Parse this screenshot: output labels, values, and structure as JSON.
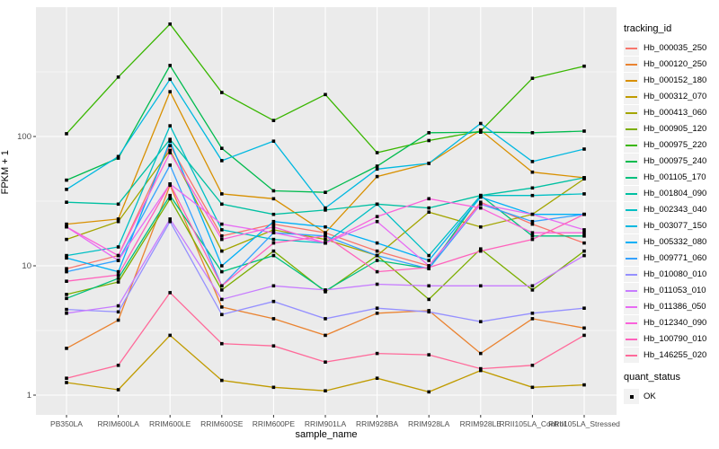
{
  "chart_data": {
    "type": "line",
    "xlabel": "sample_name",
    "ylabel": "FPKM + 1",
    "y_scale": "log10",
    "y_ticks": [
      1,
      10,
      100
    ],
    "ylim": [
      0.7,
      1000
    ],
    "grid": true,
    "legend_position": "right",
    "legend_title": "tracking_id",
    "marker_legend": {
      "title": "quant_status",
      "ok_label": "OK",
      "marker_color": "#000000"
    },
    "panel_bg": "#EBEBEB",
    "grid_color": "#FFFFFF",
    "tick_label_color": "#4D4D4D",
    "categories": [
      "PB350LA",
      "RRIM600LA",
      "RRIM600LE",
      "RRIM600SE",
      "RRIM600PE",
      "RRIM901LA",
      "RRIM928BA",
      "RRIM928LA",
      "RRIM928LE",
      "RRII105LA_Control",
      "RRII105LA_Stressed"
    ],
    "series": [
      {
        "name": "Hb_000035_250",
        "color": "#F8766D",
        "values": [
          9.5,
          12,
          85,
          17,
          21,
          18,
          13,
          10,
          31,
          21,
          15
        ]
      },
      {
        "name": "Hb_000120_250",
        "color": "#EA8331",
        "values": [
          2.3,
          3.8,
          42,
          4.8,
          3.9,
          2.9,
          4.3,
          4.5,
          2.1,
          3.9,
          3.3
        ]
      },
      {
        "name": "Hb_000152_180",
        "color": "#D89000",
        "values": [
          21,
          23,
          222,
          36,
          33,
          18,
          49,
          62,
          112,
          53,
          48
        ]
      },
      {
        "name": "Hb_000312_070",
        "color": "#C09B00",
        "values": [
          1.25,
          1.1,
          2.9,
          1.3,
          1.15,
          1.08,
          1.35,
          1.06,
          1.55,
          1.15,
          1.2
        ]
      },
      {
        "name": "Hb_000413_060",
        "color": "#A3A500",
        "values": [
          16,
          22,
          78,
          13,
          19,
          16,
          12,
          26,
          20,
          25,
          47
        ]
      },
      {
        "name": "Hb_000905_120",
        "color": "#7CAE00",
        "values": [
          6,
          7.5,
          33,
          6.5,
          13,
          6.3,
          12,
          5.5,
          13.5,
          6.5,
          13
        ]
      },
      {
        "name": "Hb_000975_220",
        "color": "#39B600",
        "values": [
          105,
          288,
          740,
          219,
          133,
          211,
          75,
          93,
          110,
          282,
          350
        ]
      },
      {
        "name": "Hb_000975_240",
        "color": "#00BB4E",
        "values": [
          46,
          68,
          354,
          81,
          38,
          37,
          59,
          107,
          108,
          107,
          110
        ]
      },
      {
        "name": "Hb_001105_170",
        "color": "#00C07D",
        "values": [
          5.6,
          8,
          35,
          9,
          12,
          6.4,
          11,
          9.5,
          35,
          17,
          17
        ]
      },
      {
        "name": "Hb_001804_090",
        "color": "#00C0A2",
        "values": [
          31,
          30,
          95,
          30,
          25,
          27,
          30,
          28,
          35,
          40,
          48
        ]
      },
      {
        "name": "Hb_002343_040",
        "color": "#00BFC4",
        "values": [
          12,
          14,
          121,
          19,
          16,
          15,
          30,
          12,
          35,
          35,
          36
        ]
      },
      {
        "name": "Hb_003077_150",
        "color": "#00B8E0",
        "values": [
          39,
          70,
          277,
          65,
          92,
          28,
          56,
          62,
          126,
          64,
          80
        ]
      },
      {
        "name": "Hb_005332_080",
        "color": "#00B0F6",
        "values": [
          11.5,
          9,
          92,
          10,
          22,
          20,
          15,
          11,
          34,
          25,
          25
        ]
      },
      {
        "name": "Hb_009771_060",
        "color": "#35A2FF",
        "values": [
          9,
          11,
          60,
          7,
          18,
          17,
          12,
          9.5,
          30,
          22,
          25
        ]
      },
      {
        "name": "Hb_010080_010",
        "color": "#9590FF",
        "values": [
          4.6,
          4.4,
          22,
          4.2,
          5.3,
          3.9,
          4.7,
          4.4,
          3.7,
          4.3,
          4.7
        ]
      },
      {
        "name": "Hb_011053_010",
        "color": "#C77CFF",
        "values": [
          4.3,
          4.9,
          23,
          5.5,
          7,
          6.5,
          7.2,
          7,
          7,
          7,
          12
        ]
      },
      {
        "name": "Hb_011386_050",
        "color": "#E76BF3",
        "values": [
          20,
          11,
          43,
          21,
          18,
          15,
          22,
          10,
          30,
          25,
          19
        ]
      },
      {
        "name": "Hb_012340_090",
        "color": "#FA62DB",
        "values": [
          20,
          12,
          75,
          16,
          20,
          15,
          24,
          33,
          28,
          18,
          18
        ]
      },
      {
        "name": "Hb_100790_010",
        "color": "#FF62BC",
        "values": [
          7.6,
          8.5,
          43,
          7,
          15,
          17,
          9,
          9.7,
          13,
          16,
          25
        ]
      },
      {
        "name": "Hb_146255_020",
        "color": "#FF6A9A",
        "values": [
          1.35,
          1.7,
          6.2,
          2.5,
          2.4,
          1.8,
          2.1,
          2.05,
          1.6,
          1.7,
          2.9
        ]
      }
    ]
  }
}
